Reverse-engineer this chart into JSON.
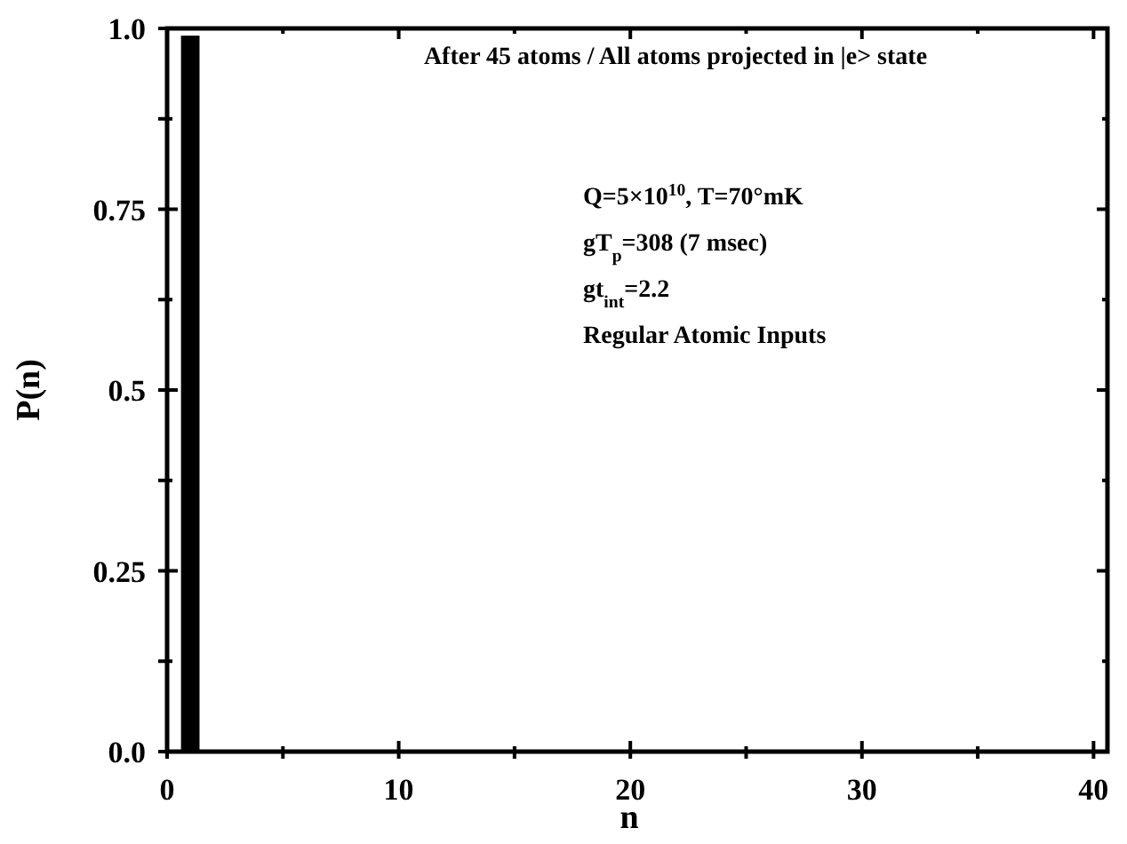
{
  "chart_data": {
    "type": "histogram",
    "xlabel": "n",
    "ylabel": "P(n)",
    "bins": [
      0.6,
      1.4
    ],
    "values": [
      0.99
    ],
    "color": "#000000",
    "xlim": [
      0,
      40.6
    ],
    "xticks": [
      0,
      {
        "value": 5,
        "label": null
      },
      10,
      {
        "value": 15,
        "label": null
      },
      20,
      {
        "value": 25,
        "label": null
      },
      30,
      {
        "value": 35,
        "label": null
      },
      40
    ],
    "ylim": [
      0,
      1
    ],
    "yticks": [
      {
        "value": 0,
        "label": "0.0"
      },
      {
        "value": 0.125,
        "label": null
      },
      0.25,
      {
        "value": 0.375,
        "label": null
      },
      0.5,
      {
        "value": 0.625,
        "label": null
      },
      0.75,
      {
        "value": 0.875,
        "label": null
      },
      {
        "value": 1,
        "label": "1.0"
      }
    ],
    "grid": false,
    "annotations": [
      "After 45 atoms / All atoms projected in |e> state",
      "Q=5×10$^{10}$, T=70°mK",
      "gT$_{p}$=308 (7 msec)",
      "gt$_{int}$=2.2",
      "Regular Atomic Inputs"
    ]
  }
}
